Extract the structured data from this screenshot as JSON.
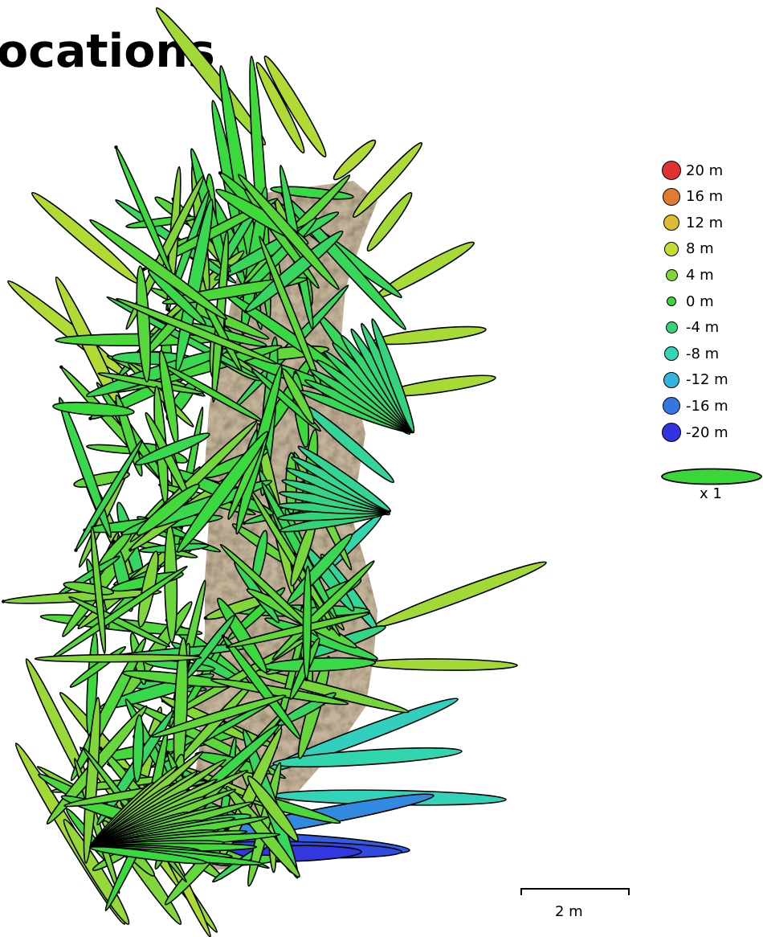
{
  "title": "ocations",
  "legend": {
    "items": [
      {
        "label": "20 m",
        "color": "#e03232"
      },
      {
        "label": "16 m",
        "color": "#e07c32"
      },
      {
        "label": "12 m",
        "color": "#e0bc32"
      },
      {
        "label": "8 m",
        "color": "#c6dc32"
      },
      {
        "label": "4 m",
        "color": "#7ed63a"
      },
      {
        "label": "0 m",
        "color": "#3ada3a"
      },
      {
        "label": "-4 m",
        "color": "#34d47a"
      },
      {
        "label": "-8 m",
        "color": "#32d6b6"
      },
      {
        "label": "-12 m",
        "color": "#32b6e0"
      },
      {
        "label": "-16 m",
        "color": "#3278e0"
      },
      {
        "label": "-20 m",
        "color": "#3232e0"
      }
    ],
    "scale_ellipse_label": "x 1",
    "scale_ellipse_color": "#3ad73a"
  },
  "scale_bar": {
    "label": "2 m"
  },
  "colors": {
    "terrain": "#b8a788",
    "terrain_dark": "#7d6e58",
    "outline": "#000000"
  }
}
